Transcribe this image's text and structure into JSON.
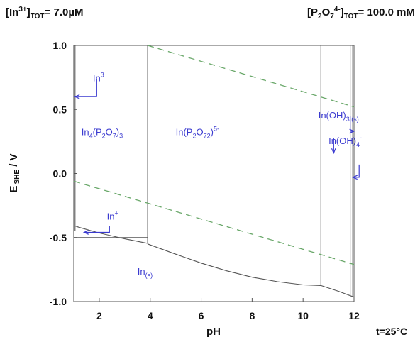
{
  "header": {
    "left": {
      "base": "[In",
      "sup": "3+",
      "close": "]",
      "sub": "TOT",
      "rest": "= 7.0µM"
    },
    "right": {
      "base": "[P",
      "s1": "2",
      "mid": "O",
      "s2": "7",
      "sup": "4-",
      "close": "]",
      "sub": "TOT",
      "rest": "= 100.0 mM"
    }
  },
  "temperature": "t=25°C",
  "chart_data": {
    "type": "line",
    "title": "",
    "xlabel": "pH",
    "ylabel": {
      "main": "E",
      "sub": "SHE",
      "rest": " / V"
    },
    "xlim": [
      1,
      12
    ],
    "ylim": [
      -1.0,
      1.0
    ],
    "xticks": [
      "2",
      "4",
      "6",
      "8",
      "10",
      "12"
    ],
    "yticks": [
      "1.0",
      "0.5",
      "0.0",
      "-0.5",
      "-1.0"
    ],
    "grid": false,
    "series": [
      {
        "style": "solid",
        "color": "#555555",
        "x": [
          1.0,
          1.0
        ],
        "y": [
          -0.5,
          1.0
        ]
      },
      {
        "style": "solid",
        "color": "#555555",
        "x": [
          1.05,
          1.05
        ],
        "y": [
          -0.45,
          1.0
        ]
      },
      {
        "style": "solid",
        "color": "#555555",
        "x": [
          1.05,
          1.2
        ],
        "y": [
          -0.41,
          -0.42
        ]
      },
      {
        "style": "solid",
        "color": "#555555",
        "x": [
          1.2,
          2.0,
          3.0,
          3.9
        ],
        "y": [
          -0.42,
          -0.465,
          -0.51,
          -0.545
        ]
      },
      {
        "style": "solid",
        "color": "#555555",
        "x": [
          1.0,
          3.9
        ],
        "y": [
          -0.5,
          -0.5
        ]
      },
      {
        "style": "solid",
        "color": "#555555",
        "x": [
          3.9,
          3.9
        ],
        "y": [
          -0.545,
          1.0
        ]
      },
      {
        "style": "solid",
        "color": "#555555",
        "x": [
          3.9,
          5.0,
          6.0,
          7.0,
          8.0,
          9.0,
          10.0,
          10.7
        ],
        "y": [
          -0.55,
          -0.63,
          -0.7,
          -0.76,
          -0.81,
          -0.845,
          -0.87,
          -0.875
        ]
      },
      {
        "style": "solid",
        "color": "#555555",
        "x": [
          10.7,
          10.7
        ],
        "y": [
          -0.875,
          1.0
        ]
      },
      {
        "style": "solid",
        "color": "#555555",
        "x": [
          10.7,
          11.4,
          12.0
        ],
        "y": [
          -0.875,
          -0.92,
          -0.965
        ]
      },
      {
        "style": "solid",
        "color": "#555555",
        "x": [
          11.85,
          11.85
        ],
        "y": [
          -0.96,
          1.0
        ]
      },
      {
        "style": "solid",
        "color": "#555555",
        "x": [
          11.95,
          11.95
        ],
        "y": [
          -0.965,
          1.0
        ]
      },
      {
        "style": "dashed",
        "color": "#6aa86a",
        "x": [
          1.0,
          12.0
        ],
        "y": [
          -0.06,
          -0.71
        ]
      },
      {
        "style": "dashed",
        "color": "#6aa86a",
        "x": [
          3.9,
          12.0
        ],
        "y": [
          1.0,
          0.52
        ]
      }
    ],
    "labels": [
      {
        "base": "In",
        "sup": "3+",
        "x": 1.75,
        "y": 0.72
      },
      {
        "base": "In",
        "sub": "4",
        "mid": "(P",
        "sub2": "2",
        "mid2": "O",
        "sub3": "7",
        "end": ")",
        "sub4": "3",
        "x": 1.3,
        "y": 0.3
      },
      {
        "base": "In(P",
        "sub": "2",
        "mid": "O",
        "sub2": "7",
        "end": ")",
        "sub3": "2",
        "sup": "5-",
        "x": 5.0,
        "y": 0.3
      },
      {
        "base": "In(OH)",
        "sub": "3 (s)",
        "x": 10.6,
        "y": 0.43
      },
      {
        "base": "In(OH)",
        "sub": "4",
        "sup": "-",
        "x": 11.0,
        "y": 0.23
      },
      {
        "base": "In",
        "sup": "+",
        "x": 2.3,
        "y": -0.36
      },
      {
        "base": "In",
        "sub": "(s)",
        "x": 3.5,
        "y": -0.79
      }
    ],
    "arrows": [
      {
        "x": [
          1.9,
          1.9,
          1.05
        ],
        "y": [
          0.74,
          0.6,
          0.6
        ]
      },
      {
        "x": [
          11.2,
          11.2
        ],
        "y": [
          0.28,
          0.16
        ]
      },
      {
        "x": [
          2.4,
          2.4,
          1.4
        ],
        "y": [
          -0.41,
          -0.46,
          -0.46
        ]
      },
      {
        "x": [
          11.85,
          11.85,
          12.0
        ],
        "y": [
          0.45,
          0.33,
          0.33
        ]
      },
      {
        "x": [
          12.2,
          12.2,
          11.95
        ],
        "y": [
          0.07,
          -0.03,
          -0.03
        ]
      }
    ]
  }
}
